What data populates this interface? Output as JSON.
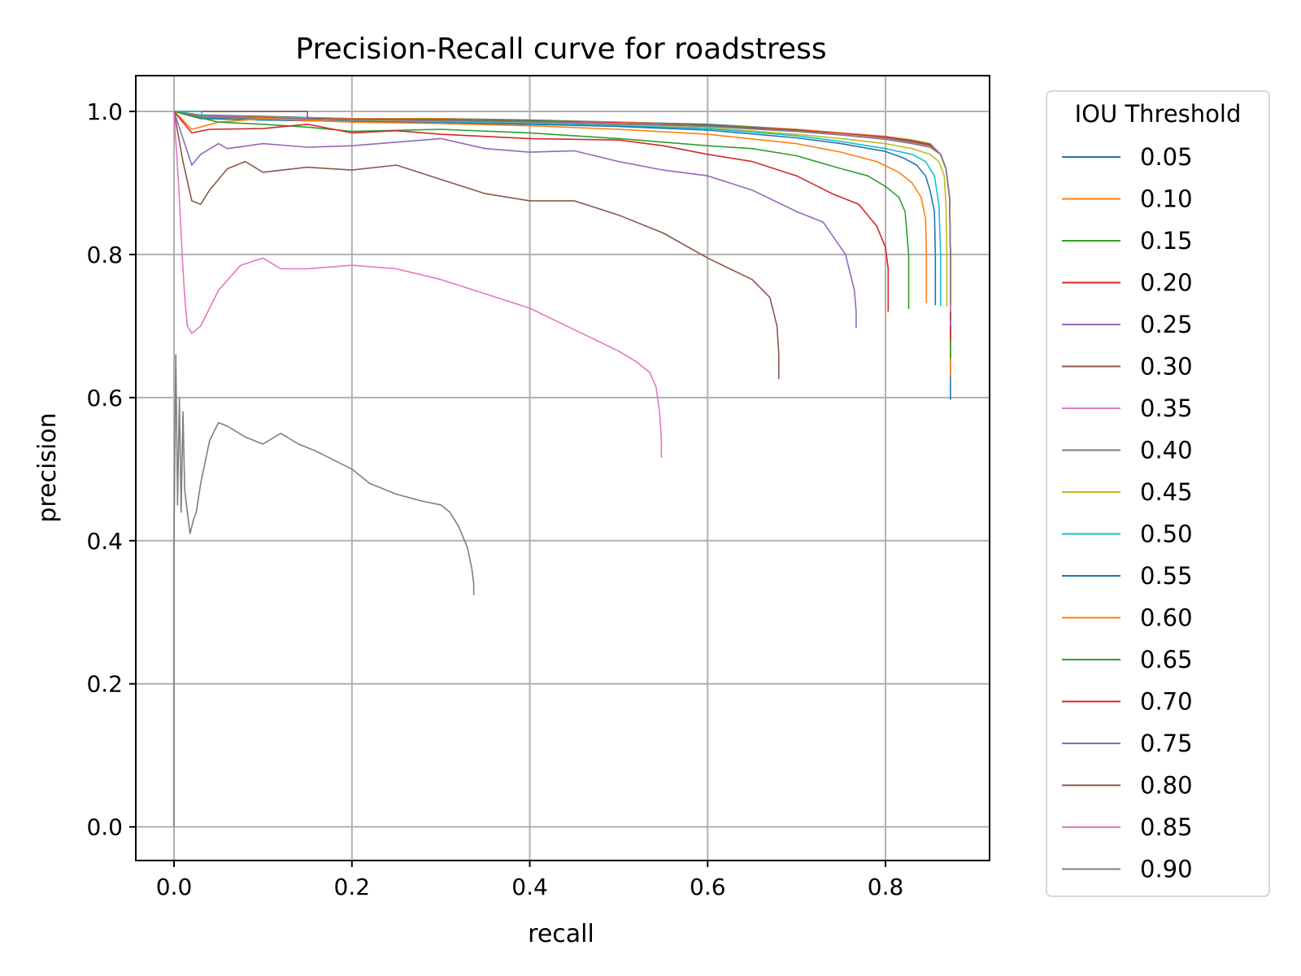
{
  "chart_data": {
    "type": "line",
    "title": "Precision-Recall curve for roadstress",
    "xlabel": "recall",
    "ylabel": "precision",
    "xlim": [
      -0.043,
      0.917
    ],
    "ylim": [
      -0.047,
      1.05
    ],
    "xticks": [
      0.0,
      0.2,
      0.4,
      0.6,
      0.8
    ],
    "xtick_labels": [
      "0.0",
      "0.2",
      "0.4",
      "0.6",
      "0.8"
    ],
    "yticks": [
      0.0,
      0.2,
      0.4,
      0.6,
      0.8,
      1.0
    ],
    "ytick_labels": [
      "0.0",
      "0.2",
      "0.4",
      "0.6",
      "0.8",
      "1.0"
    ],
    "grid": true,
    "legend": {
      "title": "IOU Threshold",
      "placement": "outside-right"
    },
    "series": [
      {
        "name": "0.05",
        "color": "#1f77b4",
        "x": [
          0.0,
          0.03,
          0.1,
          0.2,
          0.3,
          0.4,
          0.5,
          0.6,
          0.7,
          0.75,
          0.8,
          0.83,
          0.85,
          0.862,
          0.868,
          0.872,
          0.873,
          0.873
        ],
        "y": [
          1.0,
          0.995,
          0.993,
          0.99,
          0.99,
          0.988,
          0.985,
          0.982,
          0.975,
          0.97,
          0.965,
          0.96,
          0.955,
          0.94,
          0.92,
          0.88,
          0.8,
          0.597
        ]
      },
      {
        "name": "0.10",
        "color": "#ff7f0e",
        "x": [
          0.0,
          0.03,
          0.1,
          0.2,
          0.3,
          0.4,
          0.5,
          0.6,
          0.7,
          0.75,
          0.8,
          0.83,
          0.85,
          0.862,
          0.868,
          0.872,
          0.873,
          0.873
        ],
        "y": [
          1.0,
          0.994,
          0.992,
          0.99,
          0.99,
          0.987,
          0.985,
          0.981,
          0.975,
          0.97,
          0.965,
          0.96,
          0.955,
          0.94,
          0.92,
          0.88,
          0.8,
          0.63
        ]
      },
      {
        "name": "0.15",
        "color": "#2ca02c",
        "x": [
          0.0,
          0.03,
          0.1,
          0.2,
          0.3,
          0.4,
          0.5,
          0.6,
          0.7,
          0.75,
          0.8,
          0.83,
          0.85,
          0.862,
          0.868,
          0.872,
          0.873,
          0.873
        ],
        "y": [
          1.0,
          0.993,
          0.991,
          0.989,
          0.989,
          0.987,
          0.984,
          0.981,
          0.974,
          0.969,
          0.964,
          0.959,
          0.954,
          0.94,
          0.92,
          0.88,
          0.8,
          0.655
        ]
      },
      {
        "name": "0.20",
        "color": "#d62728",
        "x": [
          0.0,
          0.03,
          0.1,
          0.2,
          0.3,
          0.4,
          0.5,
          0.6,
          0.7,
          0.75,
          0.8,
          0.83,
          0.85,
          0.862,
          0.868,
          0.872,
          0.873,
          0.873
        ],
        "y": [
          1.0,
          0.993,
          0.991,
          0.989,
          0.988,
          0.986,
          0.984,
          0.98,
          0.974,
          0.969,
          0.964,
          0.958,
          0.953,
          0.94,
          0.92,
          0.88,
          0.8,
          0.68
        ]
      },
      {
        "name": "0.25",
        "color": "#9467bd",
        "x": [
          0.0,
          0.03,
          0.1,
          0.2,
          0.3,
          0.4,
          0.5,
          0.6,
          0.7,
          0.75,
          0.8,
          0.83,
          0.85,
          0.862,
          0.868,
          0.872,
          0.873,
          0.873
        ],
        "y": [
          1.0,
          0.993,
          0.991,
          0.989,
          0.988,
          0.986,
          0.983,
          0.98,
          0.973,
          0.968,
          0.963,
          0.957,
          0.952,
          0.94,
          0.92,
          0.88,
          0.8,
          0.7
        ]
      },
      {
        "name": "0.30",
        "color": "#8c564b",
        "x": [
          0.0,
          0.03,
          0.1,
          0.15,
          0.15,
          0.2,
          0.3,
          0.4,
          0.5,
          0.6,
          0.7,
          0.75,
          0.8,
          0.83,
          0.85,
          0.862,
          0.868,
          0.872,
          0.873,
          0.873
        ],
        "y": [
          1.0,
          1.0,
          1.0,
          1.0,
          0.99,
          0.989,
          0.988,
          0.986,
          0.983,
          0.98,
          0.973,
          0.968,
          0.963,
          0.957,
          0.952,
          0.94,
          0.92,
          0.88,
          0.8,
          0.71
        ]
      },
      {
        "name": "0.35",
        "color": "#e377c2",
        "x": [
          0.0,
          0.03,
          0.1,
          0.2,
          0.3,
          0.4,
          0.5,
          0.6,
          0.7,
          0.75,
          0.8,
          0.83,
          0.85,
          0.862,
          0.868,
          0.872,
          0.873,
          0.873
        ],
        "y": [
          1.0,
          0.992,
          0.99,
          0.988,
          0.987,
          0.985,
          0.983,
          0.979,
          0.972,
          0.968,
          0.962,
          0.956,
          0.951,
          0.94,
          0.92,
          0.88,
          0.8,
          0.72
        ]
      },
      {
        "name": "0.40",
        "color": "#7f7f7f",
        "x": [
          0.0,
          0.03,
          0.1,
          0.2,
          0.3,
          0.4,
          0.5,
          0.6,
          0.7,
          0.75,
          0.8,
          0.83,
          0.85,
          0.862,
          0.868,
          0.872,
          0.873,
          0.873
        ],
        "y": [
          1.0,
          0.992,
          0.99,
          0.988,
          0.987,
          0.985,
          0.982,
          0.979,
          0.972,
          0.967,
          0.961,
          0.955,
          0.95,
          0.94,
          0.92,
          0.88,
          0.8,
          0.73
        ]
      },
      {
        "name": "0.45",
        "color": "#bcbd22",
        "x": [
          0.0,
          0.03,
          0.1,
          0.2,
          0.3,
          0.4,
          0.5,
          0.6,
          0.7,
          0.75,
          0.8,
          0.83,
          0.85,
          0.86,
          0.866,
          0.868,
          0.869,
          0.869
        ],
        "y": [
          1.0,
          0.99,
          0.988,
          0.986,
          0.985,
          0.983,
          0.98,
          0.977,
          0.968,
          0.962,
          0.955,
          0.948,
          0.94,
          0.93,
          0.91,
          0.87,
          0.8,
          0.727
        ]
      },
      {
        "name": "0.50",
        "color": "#17becf",
        "x": [
          0.0,
          0.03,
          0.035,
          0.1,
          0.2,
          0.3,
          0.4,
          0.5,
          0.6,
          0.7,
          0.75,
          0.8,
          0.83,
          0.845,
          0.855,
          0.86,
          0.862,
          0.862
        ],
        "y": [
          1.0,
          1.0,
          0.99,
          0.988,
          0.986,
          0.985,
          0.983,
          0.98,
          0.976,
          0.966,
          0.958,
          0.948,
          0.94,
          0.93,
          0.91,
          0.87,
          0.8,
          0.728
        ]
      },
      {
        "name": "0.55",
        "color": "#1f77b4",
        "x": [
          0.0,
          0.03,
          0.1,
          0.2,
          0.3,
          0.4,
          0.5,
          0.6,
          0.7,
          0.75,
          0.8,
          0.82,
          0.835,
          0.845,
          0.85,
          0.855,
          0.856,
          0.856
        ],
        "y": [
          1.0,
          0.99,
          0.988,
          0.986,
          0.984,
          0.982,
          0.979,
          0.974,
          0.963,
          0.955,
          0.944,
          0.935,
          0.925,
          0.91,
          0.89,
          0.86,
          0.8,
          0.729
        ]
      },
      {
        "name": "0.60",
        "color": "#ff7f0e",
        "x": [
          0.0,
          0.02,
          0.05,
          0.1,
          0.2,
          0.3,
          0.4,
          0.5,
          0.6,
          0.7,
          0.75,
          0.79,
          0.815,
          0.83,
          0.84,
          0.845,
          0.846,
          0.846
        ],
        "y": [
          1.0,
          0.975,
          0.985,
          0.99,
          0.985,
          0.983,
          0.98,
          0.975,
          0.968,
          0.955,
          0.943,
          0.93,
          0.915,
          0.9,
          0.88,
          0.85,
          0.8,
          0.732
        ]
      },
      {
        "name": "0.65",
        "color": "#2ca02c",
        "x": [
          0.0,
          0.05,
          0.1,
          0.15,
          0.2,
          0.3,
          0.4,
          0.5,
          0.6,
          0.65,
          0.7,
          0.75,
          0.78,
          0.8,
          0.815,
          0.822,
          0.826,
          0.826
        ],
        "y": [
          1.0,
          0.985,
          0.982,
          0.978,
          0.972,
          0.975,
          0.97,
          0.962,
          0.952,
          0.948,
          0.938,
          0.92,
          0.91,
          0.895,
          0.88,
          0.86,
          0.8,
          0.724
        ]
      },
      {
        "name": "0.70",
        "color": "#d62728",
        "x": [
          0.0,
          0.02,
          0.04,
          0.1,
          0.15,
          0.2,
          0.25,
          0.3,
          0.4,
          0.5,
          0.55,
          0.6,
          0.65,
          0.7,
          0.74,
          0.77,
          0.79,
          0.8,
          0.803,
          0.803
        ],
        "y": [
          1.0,
          0.97,
          0.975,
          0.976,
          0.982,
          0.97,
          0.973,
          0.968,
          0.962,
          0.96,
          0.952,
          0.94,
          0.93,
          0.91,
          0.885,
          0.87,
          0.84,
          0.81,
          0.78,
          0.72
        ]
      },
      {
        "name": "0.75",
        "color": "#9467bd",
        "x": [
          0.0,
          0.02,
          0.03,
          0.05,
          0.06,
          0.1,
          0.15,
          0.2,
          0.3,
          0.35,
          0.4,
          0.45,
          0.5,
          0.55,
          0.6,
          0.65,
          0.7,
          0.73,
          0.755,
          0.765,
          0.767,
          0.767
        ],
        "y": [
          1.0,
          0.925,
          0.94,
          0.955,
          0.948,
          0.955,
          0.95,
          0.952,
          0.962,
          0.948,
          0.943,
          0.945,
          0.93,
          0.918,
          0.91,
          0.89,
          0.86,
          0.845,
          0.8,
          0.75,
          0.72,
          0.697
        ]
      },
      {
        "name": "0.80",
        "color": "#8c564b",
        "x": [
          0.0,
          0.01,
          0.02,
          0.03,
          0.04,
          0.06,
          0.08,
          0.1,
          0.15,
          0.2,
          0.25,
          0.3,
          0.35,
          0.4,
          0.45,
          0.5,
          0.55,
          0.6,
          0.65,
          0.67,
          0.678,
          0.68,
          0.68
        ],
        "y": [
          1.0,
          0.93,
          0.875,
          0.87,
          0.89,
          0.92,
          0.93,
          0.915,
          0.922,
          0.918,
          0.925,
          0.905,
          0.885,
          0.875,
          0.875,
          0.855,
          0.83,
          0.795,
          0.765,
          0.74,
          0.7,
          0.66,
          0.626
        ]
      },
      {
        "name": "0.85",
        "color": "#e377c2",
        "x": [
          0.0,
          0.005,
          0.01,
          0.012,
          0.015,
          0.02,
          0.03,
          0.05,
          0.075,
          0.1,
          0.12,
          0.15,
          0.2,
          0.25,
          0.3,
          0.35,
          0.4,
          0.45,
          0.5,
          0.52,
          0.535,
          0.542,
          0.546,
          0.548,
          0.548
        ],
        "y": [
          1.0,
          0.9,
          0.78,
          0.74,
          0.7,
          0.69,
          0.7,
          0.75,
          0.785,
          0.795,
          0.78,
          0.78,
          0.785,
          0.78,
          0.765,
          0.745,
          0.725,
          0.695,
          0.665,
          0.65,
          0.635,
          0.615,
          0.58,
          0.54,
          0.516
        ]
      },
      {
        "name": "0.90",
        "color": "#7f7f7f",
        "x": [
          0.0,
          0.0,
          0.002,
          0.004,
          0.006,
          0.008,
          0.01,
          0.012,
          0.015,
          0.018,
          0.022,
          0.025,
          0.03,
          0.04,
          0.05,
          0.06,
          0.08,
          0.1,
          0.12,
          0.14,
          0.16,
          0.2,
          0.22,
          0.25,
          0.28,
          0.3,
          0.31,
          0.32,
          0.33,
          0.335,
          0.337,
          0.337
        ],
        "y": [
          0.0,
          0.4,
          0.66,
          0.45,
          0.6,
          0.44,
          0.58,
          0.47,
          0.44,
          0.41,
          0.43,
          0.44,
          0.48,
          0.54,
          0.565,
          0.56,
          0.545,
          0.535,
          0.55,
          0.535,
          0.525,
          0.5,
          0.48,
          0.465,
          0.455,
          0.45,
          0.44,
          0.42,
          0.39,
          0.36,
          0.34,
          0.324
        ]
      }
    ]
  }
}
